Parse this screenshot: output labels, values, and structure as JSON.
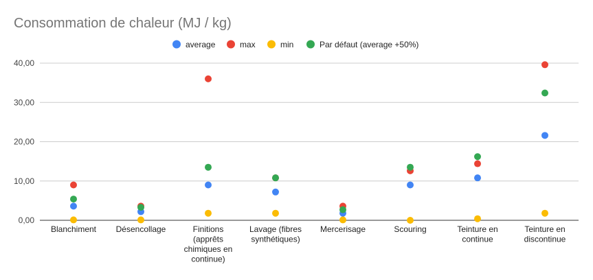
{
  "chart_data": {
    "type": "scatter",
    "title": "Consommation de chaleur (MJ / kg)",
    "legend_position": "top",
    "grid": true,
    "ylim": [
      0,
      40
    ],
    "y_ticks": [
      "0,00",
      "10,00",
      "20,00",
      "30,00",
      "40,00"
    ],
    "y_tick_values": [
      0,
      10,
      20,
      30,
      40
    ],
    "categories": [
      [
        "Blanchiment"
      ],
      [
        "Désencollage"
      ],
      [
        "Finitions",
        "(apprêts",
        "chimiques en",
        "continue)"
      ],
      [
        "Lavage (fibres",
        "synthétiques)"
      ],
      [
        "Mercerisage"
      ],
      [
        "Scouring"
      ],
      [
        "Teinture en",
        "continue"
      ],
      [
        "Teinture en",
        "discontinue"
      ]
    ],
    "series": [
      {
        "name": "average",
        "color": "#4285F4",
        "values": [
          3.6,
          2.2,
          9.0,
          7.2,
          1.8,
          9.0,
          10.8,
          21.6
        ]
      },
      {
        "name": "max",
        "color": "#EA4335",
        "values": [
          9.0,
          3.6,
          36.0,
          10.8,
          3.6,
          12.6,
          14.4,
          39.6
        ]
      },
      {
        "name": "min",
        "color": "#FBBC04",
        "values": [
          0.1,
          0.1,
          1.8,
          1.8,
          0.1,
          0.0,
          0.4,
          1.8
        ]
      },
      {
        "name": "Par défaut (average +50%)",
        "color": "#34A853",
        "values": [
          5.4,
          3.3,
          13.5,
          10.8,
          2.7,
          13.5,
          16.2,
          32.4
        ]
      }
    ]
  }
}
